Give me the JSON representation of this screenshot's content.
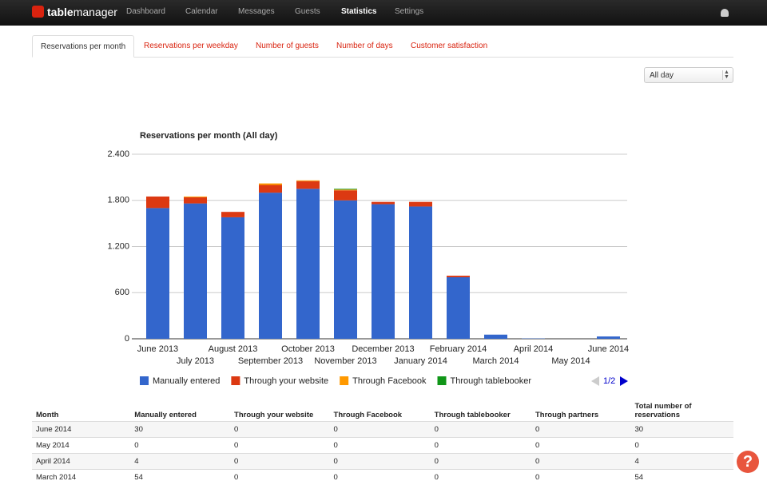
{
  "nav": {
    "logo_bold": "table",
    "logo_rest": "manager",
    "items": [
      "Dashboard",
      "Calendar",
      "Messages",
      "Guests",
      "Statistics",
      "Settings"
    ],
    "active": 4
  },
  "tabs": {
    "items": [
      "Reservations per month",
      "Reservations per weekday",
      "Number of guests",
      "Number of days",
      "Customer satisfaction"
    ],
    "active": 0
  },
  "filter": "All day",
  "chart_data": {
    "type": "stacked-bar",
    "title": "Reservations per month (All day)",
    "categories": [
      "June 2013",
      "July 2013",
      "August 2013",
      "September 2013",
      "October 2013",
      "November 2013",
      "December 2013",
      "January 2014",
      "February 2014",
      "March 2014",
      "April 2014",
      "May 2014",
      "June 2014"
    ],
    "series": [
      {
        "name": "Manually entered",
        "color": "#3366cc",
        "values": [
          1700,
          1760,
          1580,
          1900,
          1950,
          1800,
          1750,
          1720,
          800,
          54,
          4,
          0,
          30
        ]
      },
      {
        "name": "Through your website",
        "color": "#dc3912",
        "values": [
          150,
          80,
          70,
          100,
          100,
          130,
          30,
          60,
          20,
          0,
          0,
          0,
          0
        ]
      },
      {
        "name": "Through Facebook",
        "color": "#ff9900",
        "values": [
          0,
          10,
          0,
          20,
          10,
          10,
          0,
          0,
          0,
          0,
          0,
          0,
          0
        ]
      },
      {
        "name": "Through tablebooker",
        "color": "#109618",
        "values": [
          0,
          0,
          0,
          0,
          0,
          10,
          0,
          0,
          0,
          0,
          0,
          0,
          0
        ]
      }
    ],
    "ylim": [
      0,
      2400
    ],
    "yticks": [
      0,
      600,
      {
        "value": 1200,
        "label": "1.200"
      },
      {
        "value": 1800,
        "label": "1.800"
      },
      {
        "value": 2400,
        "label": "2.400"
      }
    ],
    "grid": true,
    "legend": "bottom",
    "page": "1/2"
  },
  "table": {
    "columns": [
      "Month",
      "Manually entered",
      "Through your website",
      "Through Facebook",
      "Through tablebooker",
      "Through partners",
      "Total number of reservations"
    ],
    "rows": [
      [
        "June 2014",
        30,
        0,
        0,
        0,
        0,
        30
      ],
      [
        "May 2014",
        0,
        0,
        0,
        0,
        0,
        0
      ],
      [
        "April 2014",
        4,
        0,
        0,
        0,
        0,
        4
      ],
      [
        "March 2014",
        54,
        0,
        0,
        0,
        0,
        54
      ]
    ]
  }
}
